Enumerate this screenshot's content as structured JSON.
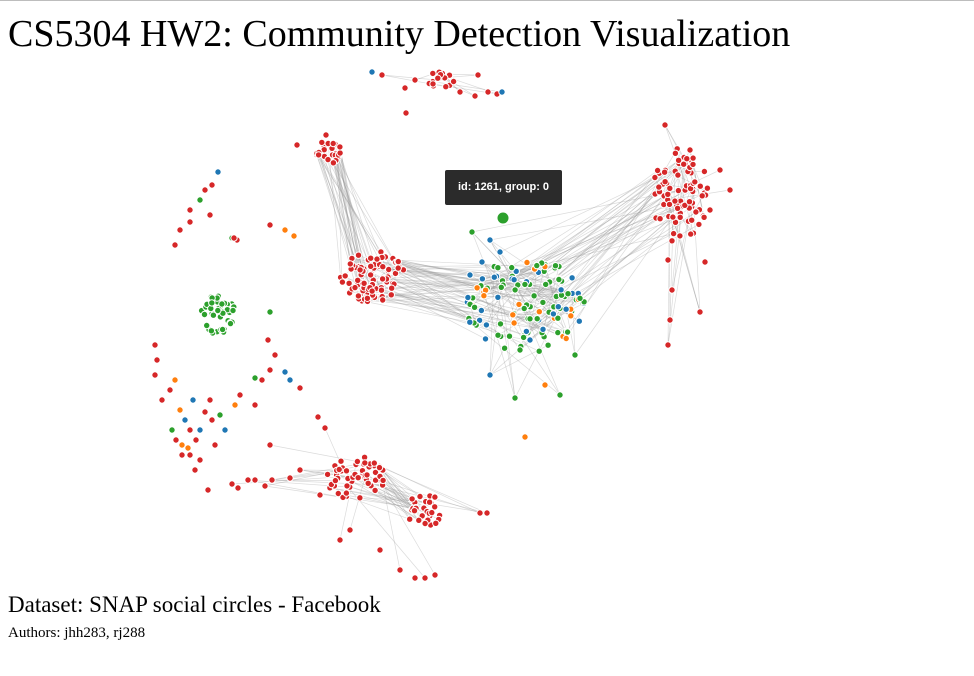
{
  "page": {
    "title": "CS5304 HW2: Community Detection Visualization",
    "dataset": "Dataset: SNAP social circles - Facebook",
    "authors": "Authors: jhh283, rj288"
  },
  "tooltip": {
    "text": "id: 1261, group: 0"
  },
  "colors": {
    "background": "#ffffff",
    "link": "#999999",
    "node_stroke": "#ffffff",
    "group_colors": [
      "#2ca02c",
      "#d62728",
      "#1f77b4",
      "#ff7f0e"
    ],
    "tooltip_bg": "#2b2b2b",
    "tooltip_text": "#ffffff"
  }
}
